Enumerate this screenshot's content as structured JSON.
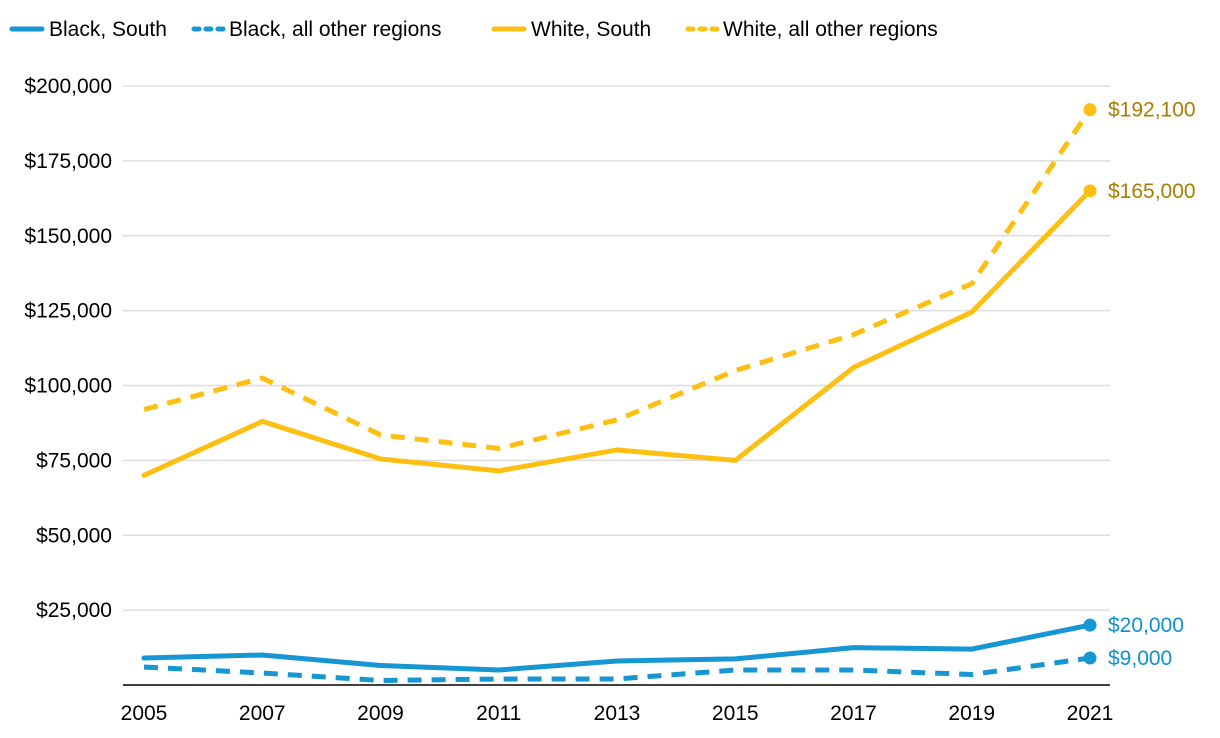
{
  "chart_data": {
    "type": "line",
    "title": "",
    "xlabel": "",
    "ylabel": "",
    "x": [
      2005,
      2007,
      2009,
      2011,
      2013,
      2015,
      2017,
      2019,
      2021
    ],
    "x_tick_labels": [
      "2005",
      "2007",
      "2009",
      "2011",
      "2013",
      "2015",
      "2017",
      "2019",
      "2021"
    ],
    "ylim": [
      0,
      200000
    ],
    "y_ticks": [
      25000,
      50000,
      75000,
      100000,
      125000,
      150000,
      175000,
      200000
    ],
    "y_tick_labels": [
      "$25,000",
      "$50,000",
      "$75,000",
      "$100,000",
      "$125,000",
      "$150,000",
      "$175,000",
      "$200,000"
    ],
    "grid": true,
    "legend_position": "top",
    "series": [
      {
        "name": "Black, South",
        "legend_label": "Black, South",
        "color": "#1696d2",
        "style": "solid",
        "values": [
          9000,
          10000,
          6500,
          5000,
          8000,
          8700,
          12500,
          12000,
          20000
        ],
        "end_label": "$20,000",
        "end_label_color": "#1190cf"
      },
      {
        "name": "Black, all other regions",
        "legend_label": "Black, all other regions",
        "color": "#1696d2",
        "style": "dashed",
        "values": [
          6000,
          4000,
          1500,
          2000,
          2000,
          5000,
          5000,
          3500,
          9000
        ],
        "end_label": "$9,000",
        "end_label_color": "#1190cf"
      },
      {
        "name": "White, South",
        "legend_label": "White, South",
        "color": "#fdbf11",
        "style": "solid",
        "values": [
          70000,
          88000,
          75500,
          71500,
          78500,
          75000,
          106000,
          124500,
          165000
        ],
        "end_label": "$165,000",
        "end_label_color": "#a87d00"
      },
      {
        "name": "White, all other regions",
        "legend_label": "White, all other regions",
        "color": "#fdbf11",
        "style": "dashed",
        "values": [
          92000,
          102500,
          83500,
          79000,
          88500,
          105000,
          117000,
          134000,
          192100
        ],
        "end_label": "$192,100",
        "end_label_color": "#a87d00"
      }
    ]
  }
}
